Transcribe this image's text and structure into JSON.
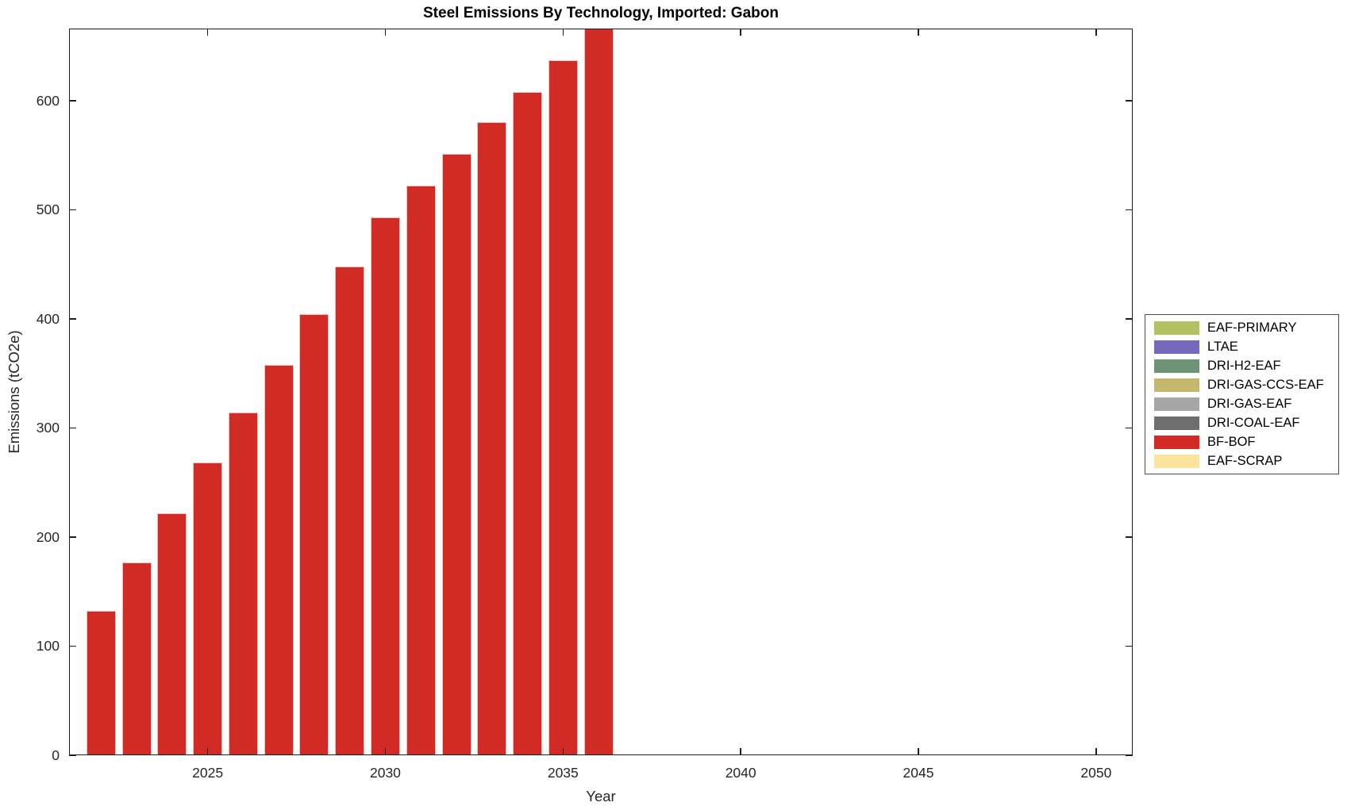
{
  "title": "Steel Emissions By Technology, Imported: Gabon",
  "chart_data": {
    "type": "bar",
    "title": "Steel Emissions By Technology, Imported: Gabon",
    "xlabel": "Year",
    "ylabel": "Emissions (tCO2e)",
    "grid": false,
    "legend_position": "right-outside",
    "xlim": [
      2021.1,
      2051.03
    ],
    "ylim": [
      0,
      666
    ],
    "xticks": [
      2025,
      2030,
      2035,
      2040,
      2045,
      2050
    ],
    "xtick_labels": [
      "2025",
      "2030",
      "2035",
      "2040",
      "2045",
      "2050"
    ],
    "yticks": [
      0,
      100,
      200,
      300,
      400,
      500,
      600
    ],
    "ytick_labels": [
      "0",
      "100",
      "200",
      "300",
      "400",
      "500",
      "600"
    ],
    "x": [
      2022,
      2023,
      2024,
      2025,
      2026,
      2027,
      2028,
      2029,
      2030,
      2031,
      2032,
      2033,
      2034,
      2035,
      2036
    ],
    "series": [
      {
        "name": "BF-BOF",
        "color": "#d22a25",
        "values": [
          132,
          177,
          222,
          268,
          314,
          358,
          404,
          448,
          493,
          522,
          551,
          580,
          608,
          637,
          667
        ]
      }
    ],
    "legend": [
      {
        "label": "EAF-PRIMARY",
        "color": "#b3c163"
      },
      {
        "label": "LTAE",
        "color": "#7568bd"
      },
      {
        "label": "DRI-H2-EAF",
        "color": "#6f9377"
      },
      {
        "label": "DRI-GAS-CCS-EAF",
        "color": "#c5b76b"
      },
      {
        "label": "DRI-GAS-EAF",
        "color": "#a6a6a6"
      },
      {
        "label": "DRI-COAL-EAF",
        "color": "#6e6e6e"
      },
      {
        "label": "BF-BOF",
        "color": "#d22a25"
      },
      {
        "label": "EAF-SCRAP",
        "color": "#fce49e"
      }
    ],
    "axis_color": "#1f1f1f",
    "background_color": "#ffffff"
  }
}
